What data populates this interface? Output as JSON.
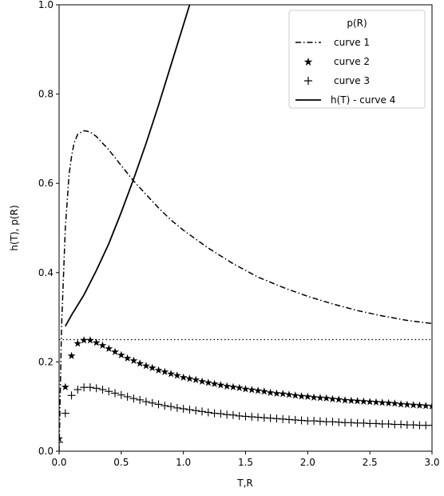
{
  "chart_data": {
    "type": "line",
    "title": "",
    "xlabel": "T,R",
    "ylabel": "h(T), p(R)",
    "xlim": [
      0.0,
      3.0
    ],
    "ylim": [
      0.0,
      1.0
    ],
    "x_ticks": [
      "0.0",
      "0.5",
      "1.0",
      "1.5",
      "2.0",
      "2.5",
      "3.0"
    ],
    "y_ticks": [
      "0.0",
      "0.2",
      "0.4",
      "0.6",
      "0.8",
      "1.0"
    ],
    "grid": false,
    "legend": {
      "title": "p(R)",
      "placement": "top-right",
      "entries": [
        "curve 1",
        "curve 2",
        "curve 3",
        "h(T) - curve 4"
      ]
    },
    "reference_line": {
      "y": 0.25,
      "style": "dotted"
    },
    "series": [
      {
        "name": "curve 1",
        "style": "dash-dot",
        "x": [
          0.0,
          0.02,
          0.05,
          0.08,
          0.1,
          0.12,
          0.15,
          0.18,
          0.2,
          0.22,
          0.25,
          0.3,
          0.4,
          0.5,
          0.6,
          0.7,
          0.8,
          0.9,
          1.0,
          1.2,
          1.4,
          1.6,
          1.8,
          2.0,
          2.2,
          2.4,
          2.6,
          2.8,
          3.0
        ],
        "y": [
          0.0,
          0.28,
          0.5,
          0.62,
          0.66,
          0.69,
          0.71,
          0.715,
          0.718,
          0.717,
          0.715,
          0.705,
          0.675,
          0.64,
          0.605,
          0.575,
          0.545,
          0.518,
          0.495,
          0.455,
          0.42,
          0.39,
          0.367,
          0.347,
          0.33,
          0.315,
          0.303,
          0.293,
          0.286
        ]
      },
      {
        "name": "curve 2",
        "style": "star-markers",
        "x": [
          0.0,
          0.05,
          0.1,
          0.15,
          0.2,
          0.25,
          0.3,
          0.35,
          0.4,
          0.45,
          0.5,
          0.55,
          0.6,
          0.65,
          0.7,
          0.75,
          0.8,
          0.85,
          0.9,
          0.95,
          1.0,
          1.05,
          1.1,
          1.15,
          1.2,
          1.25,
          1.3,
          1.35,
          1.4,
          1.45,
          1.5,
          1.55,
          1.6,
          1.65,
          1.7,
          1.75,
          1.8,
          1.85,
          1.9,
          1.95,
          2.0,
          2.05,
          2.1,
          2.15,
          2.2,
          2.25,
          2.3,
          2.35,
          2.4,
          2.45,
          2.5,
          2.55,
          2.6,
          2.65,
          2.7,
          2.75,
          2.8,
          2.85,
          2.9,
          2.95,
          3.0
        ],
        "y": [
          0.03,
          0.145,
          0.215,
          0.243,
          0.25,
          0.25,
          0.245,
          0.238,
          0.231,
          0.224,
          0.217,
          0.21,
          0.204,
          0.198,
          0.193,
          0.188,
          0.183,
          0.179,
          0.175,
          0.171,
          0.167,
          0.164,
          0.161,
          0.158,
          0.155,
          0.152,
          0.15,
          0.147,
          0.145,
          0.143,
          0.141,
          0.139,
          0.137,
          0.135,
          0.133,
          0.131,
          0.13,
          0.128,
          0.126,
          0.125,
          0.124,
          0.122,
          0.121,
          0.12,
          0.118,
          0.117,
          0.116,
          0.115,
          0.114,
          0.113,
          0.112,
          0.111,
          0.11,
          0.109,
          0.108,
          0.107,
          0.106,
          0.105,
          0.104,
          0.103,
          0.102
        ]
      },
      {
        "name": "curve 3",
        "style": "plus-markers",
        "x": [
          0.0,
          0.05,
          0.1,
          0.15,
          0.2,
          0.25,
          0.3,
          0.35,
          0.4,
          0.45,
          0.5,
          0.55,
          0.6,
          0.65,
          0.7,
          0.75,
          0.8,
          0.85,
          0.9,
          0.95,
          1.0,
          1.05,
          1.1,
          1.15,
          1.2,
          1.25,
          1.3,
          1.35,
          1.4,
          1.45,
          1.5,
          1.55,
          1.6,
          1.65,
          1.7,
          1.75,
          1.8,
          1.85,
          1.9,
          1.95,
          2.0,
          2.05,
          2.1,
          2.15,
          2.2,
          2.25,
          2.3,
          2.35,
          2.4,
          2.45,
          2.5,
          2.55,
          2.6,
          2.65,
          2.7,
          2.75,
          2.8,
          2.85,
          2.9,
          2.95,
          3.0
        ],
        "y": [
          0.02,
          0.085,
          0.125,
          0.138,
          0.143,
          0.143,
          0.141,
          0.138,
          0.134,
          0.13,
          0.126,
          0.122,
          0.118,
          0.115,
          0.111,
          0.108,
          0.105,
          0.102,
          0.1,
          0.097,
          0.095,
          0.093,
          0.091,
          0.089,
          0.087,
          0.085,
          0.084,
          0.082,
          0.081,
          0.079,
          0.078,
          0.077,
          0.076,
          0.075,
          0.074,
          0.073,
          0.072,
          0.071,
          0.07,
          0.069,
          0.068,
          0.068,
          0.067,
          0.066,
          0.066,
          0.065,
          0.064,
          0.064,
          0.063,
          0.063,
          0.062,
          0.062,
          0.061,
          0.061,
          0.06,
          0.06,
          0.059,
          0.059,
          0.058,
          0.058,
          0.058
        ]
      },
      {
        "name": "h(T) - curve 4",
        "style": "solid",
        "x": [
          0.05,
          0.1,
          0.2,
          0.3,
          0.4,
          0.5,
          0.6,
          0.7,
          0.8,
          0.9,
          1.0
        ],
        "y": [
          0.28,
          0.305,
          0.35,
          0.405,
          0.465,
          0.535,
          0.61,
          0.69,
          0.775,
          0.865,
          0.955
        ]
      }
    ]
  }
}
